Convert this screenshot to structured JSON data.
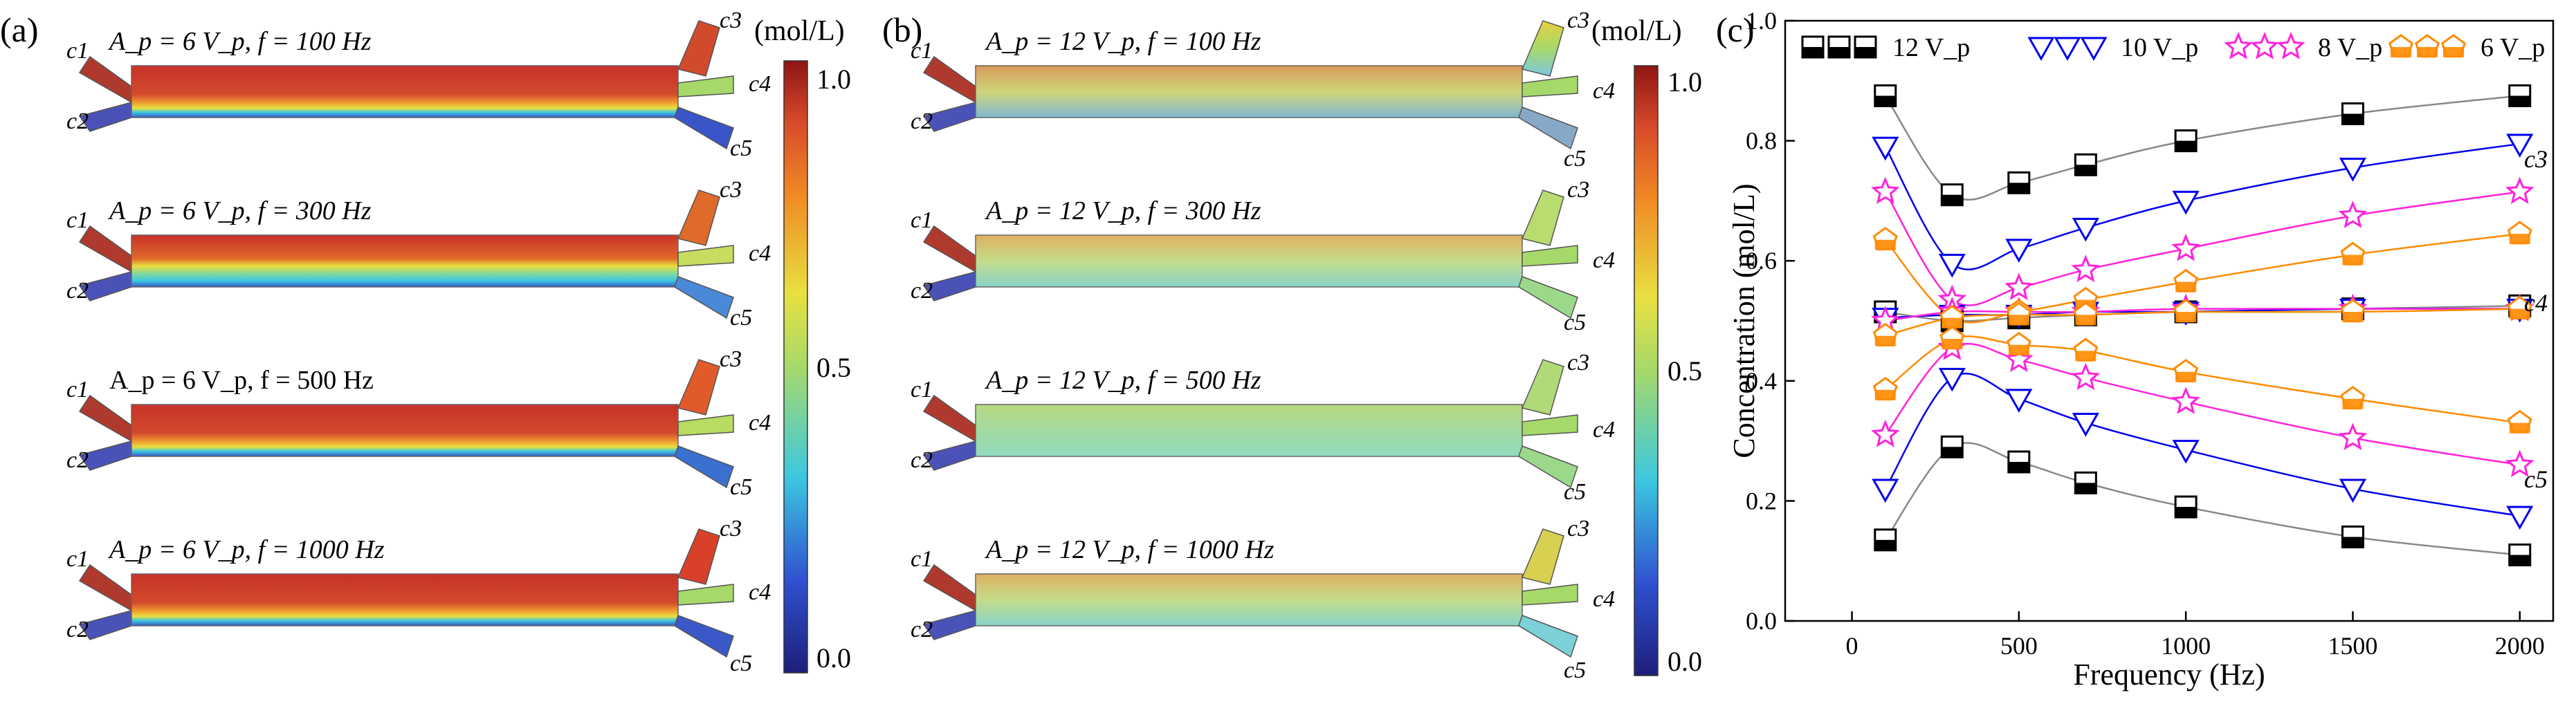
{
  "panel_a": {
    "label": "(a)",
    "unit": "(mol/L)",
    "colorbar_ticks": [
      "1.0",
      "0.5",
      "0.0"
    ],
    "outlet_labels": [
      "c3",
      "c4",
      "c5"
    ],
    "inlet_labels": [
      "c1",
      "c2"
    ],
    "rows": [
      {
        "title": "A_p = 6 V_p, f = 100 Hz"
      },
      {
        "title": "A_p = 6 V_p, f = 300 Hz"
      },
      {
        "title": "A_p = 6 V_p, f = 500 Hz"
      },
      {
        "title": "A_p = 6 V_p, f = 1000 Hz"
      }
    ]
  },
  "panel_b": {
    "label": "(b)",
    "unit": "(mol/L)",
    "colorbar_ticks": [
      "1.0",
      "0.5",
      "0.0"
    ],
    "outlet_labels": [
      "c3",
      "c4",
      "c5"
    ],
    "inlet_labels": [
      "c1",
      "c2"
    ],
    "rows": [
      {
        "title": "A_p = 12 V_p, f = 100 Hz"
      },
      {
        "title": "A_p = 12 V_p, f = 300 Hz"
      },
      {
        "title": "A_p = 12 V_p, f = 500 Hz"
      },
      {
        "title": "A_p = 12 V_p, f = 1000 Hz"
      }
    ]
  },
  "colors": {
    "red": "#c8312a",
    "orange": "#f08a24",
    "yellow": "#e8e040",
    "green": "#a6d96a",
    "cyan": "#3cc8e0",
    "blue": "#3a55c8",
    "navy": "#1e1f7a",
    "s12": "#000000",
    "s10": "#0000ee",
    "s8": "#ff22dd",
    "s6": "#ff8a00"
  },
  "chart_data": {
    "label": "(c)",
    "type": "scatter",
    "xlabel": "Frequency (Hz)",
    "ylabel": "Concentration (mol/L)",
    "xlim": [
      -200,
      2100
    ],
    "ylim": [
      0.0,
      1.0
    ],
    "xticks": [
      0,
      500,
      1000,
      1500,
      2000
    ],
    "yticks": [
      0.0,
      0.2,
      0.4,
      0.6,
      0.8,
      1.0
    ],
    "legend_position": "top",
    "outlet_annotations": [
      "c3",
      "c4",
      "c5"
    ],
    "x": [
      100,
      300,
      500,
      700,
      1000,
      1500,
      2000
    ],
    "series": [
      {
        "name": "12 V_p",
        "marker": "square",
        "color": "#000000",
        "line": "#888888",
        "c3": [
          0.875,
          0.71,
          0.73,
          0.76,
          0.8,
          0.845,
          0.875
        ],
        "c4": [
          0.515,
          0.5,
          0.505,
          0.51,
          0.515,
          0.52,
          0.525
        ],
        "c5": [
          0.135,
          0.29,
          0.265,
          0.23,
          0.19,
          0.14,
          0.11
        ]
      },
      {
        "name": "10 V_p",
        "marker": "triangle-down",
        "color": "#0000ee",
        "line": "#0000ee",
        "c3": [
          0.79,
          0.595,
          0.62,
          0.655,
          0.7,
          0.755,
          0.795
        ],
        "c4": [
          0.505,
          0.51,
          0.51,
          0.515,
          0.515,
          0.52,
          0.52
        ],
        "c5": [
          0.22,
          0.405,
          0.37,
          0.33,
          0.285,
          0.22,
          0.175
        ]
      },
      {
        "name": "8 V_p",
        "marker": "star",
        "color": "#ff22dd",
        "line": "#ff22dd",
        "c3": [
          0.715,
          0.535,
          0.555,
          0.585,
          0.62,
          0.675,
          0.715
        ],
        "c4": [
          0.5,
          0.515,
          0.515,
          0.515,
          0.52,
          0.52,
          0.52
        ],
        "c5": [
          0.31,
          0.455,
          0.435,
          0.405,
          0.365,
          0.305,
          0.26
        ]
      },
      {
        "name": "6 V_p",
        "marker": "pentagon",
        "color": "#ff8a00",
        "line": "#ff8a00",
        "c3": [
          0.635,
          0.505,
          0.515,
          0.535,
          0.565,
          0.61,
          0.645
        ],
        "c4": [
          0.475,
          0.505,
          0.51,
          0.51,
          0.515,
          0.515,
          0.52
        ],
        "c5": [
          0.385,
          0.47,
          0.46,
          0.45,
          0.415,
          0.37,
          0.33
        ]
      }
    ]
  }
}
